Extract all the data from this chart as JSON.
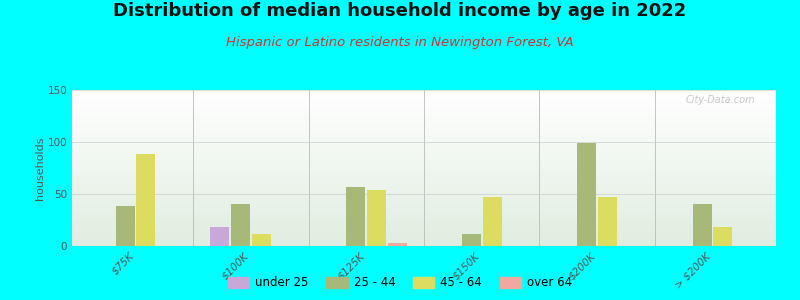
{
  "title": "Distribution of median household income by age in 2022",
  "subtitle": "Hispanic or Latino residents in Newington Forest, VA",
  "ylabel": "households",
  "background_color": "#00FFFF",
  "categories": [
    "$75K",
    "$100K",
    "$125K",
    "$150K",
    "$200K",
    "> $200K"
  ],
  "age_groups": [
    "under 25",
    "25 - 44",
    "45 - 64",
    "over 64"
  ],
  "colors": {
    "under 25": "#C8A8D8",
    "25 - 44": "#A8B878",
    "45 - 64": "#DCDC60",
    "over 64": "#F0A8A0"
  },
  "data": {
    "under 25": [
      0,
      18,
      0,
      0,
      0,
      0
    ],
    "25 - 44": [
      38,
      40,
      57,
      12,
      99,
      40
    ],
    "45 - 64": [
      88,
      12,
      54,
      47,
      47,
      18
    ],
    "over 64": [
      0,
      0,
      3,
      0,
      0,
      0
    ]
  },
  "ylim": [
    0,
    150
  ],
  "yticks": [
    0,
    50,
    100,
    150
  ],
  "bar_width": 0.18,
  "title_fontsize": 13,
  "subtitle_fontsize": 9.5,
  "axis_label_fontsize": 8,
  "tick_fontsize": 7.5,
  "legend_fontsize": 8.5,
  "watermark": "City-Data.com"
}
